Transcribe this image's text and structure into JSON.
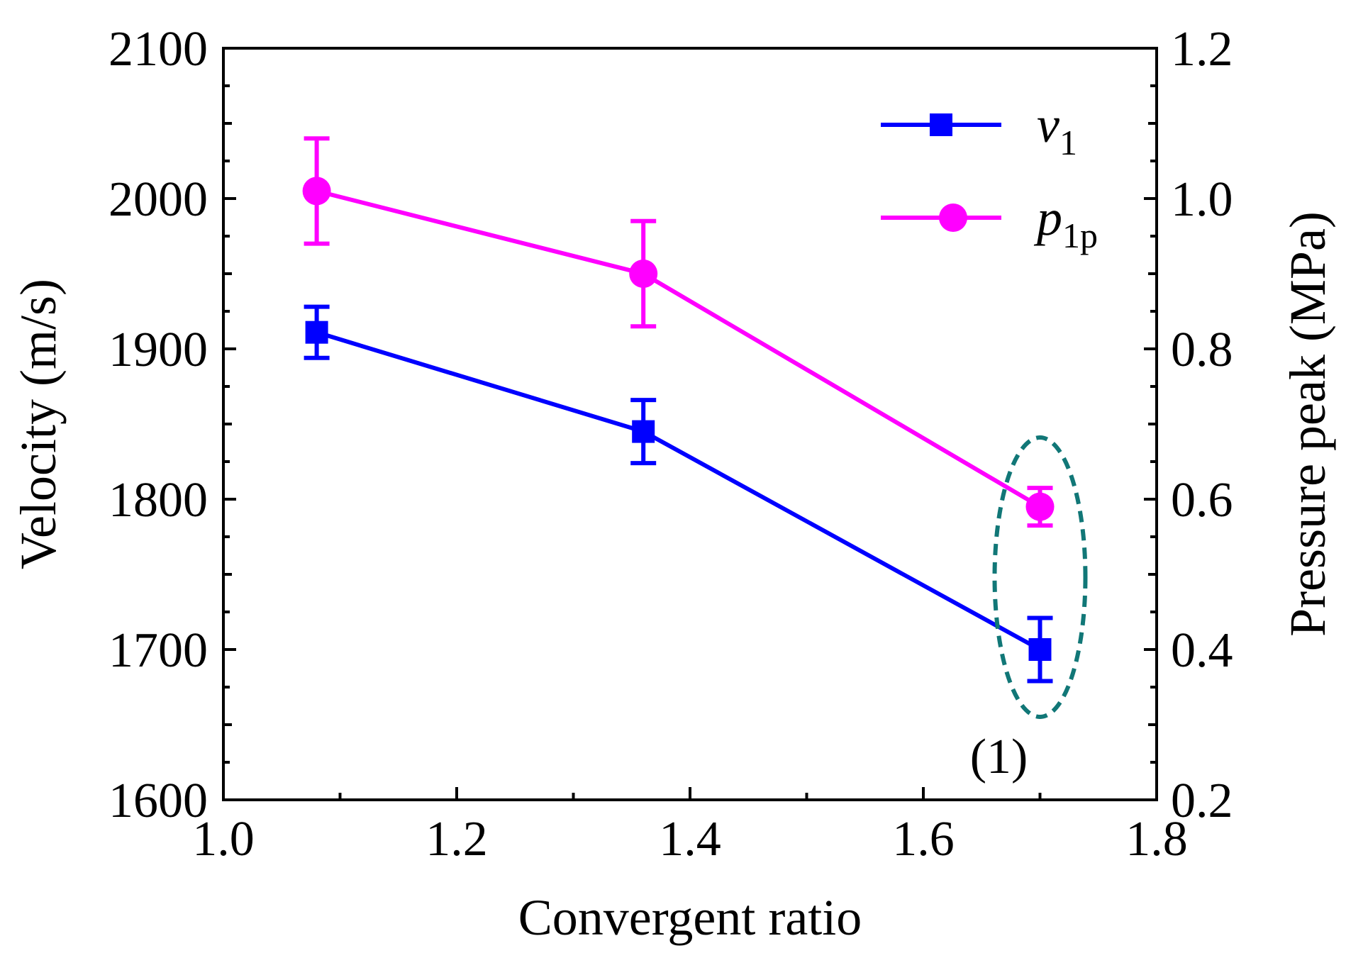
{
  "chart_data": {
    "type": "line",
    "title": "",
    "xlabel": "Convergent ratio",
    "ylabel": "Velocity (m/s)",
    "y2label": "Pressure peak (MPa)",
    "xlim": [
      1.0,
      1.8
    ],
    "ylim": [
      1600,
      2100
    ],
    "y2lim": [
      0.2,
      1.2
    ],
    "x_ticks": [
      "1.0",
      "1.2",
      "1.4",
      "1.6",
      "1.8"
    ],
    "y_ticks": [
      "1600",
      "1700",
      "1800",
      "1900",
      "2000",
      "2100"
    ],
    "y2_ticks": [
      "0.2",
      "0.4",
      "0.6",
      "0.8",
      "1.0",
      "1.2"
    ],
    "x": [
      1.08,
      1.36,
      1.7
    ],
    "series": [
      {
        "name": "v1",
        "label_main": "v",
        "label_sub": "1",
        "axis": "left",
        "marker": "square",
        "color": "#0000FF",
        "values": [
          1911,
          1845,
          1700
        ],
        "err": [
          17,
          21,
          21
        ]
      },
      {
        "name": "p1p",
        "label_main": "p",
        "label_sub": "1p",
        "axis": "right",
        "marker": "circle",
        "color": "#FF00FF",
        "values": [
          1.01,
          0.9,
          0.59
        ],
        "err": [
          0.07,
          0.07,
          0.025
        ]
      }
    ],
    "legend_position": "top-right",
    "annotation": {
      "text": "(1)",
      "x": 1.7,
      "shape": "dashed-ellipse",
      "color": "#117777"
    }
  }
}
